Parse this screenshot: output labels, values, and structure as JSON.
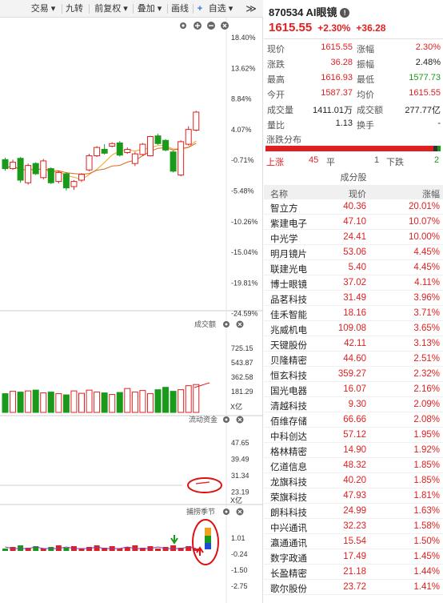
{
  "toolbar": {
    "buttons": [
      "交易 ▾",
      "九转",
      "前复权 ▾",
      "叠加 ▾",
      "画线",
      "自选 ▾"
    ],
    "collapse": "≫"
  },
  "kline": {
    "y_labels": [
      "18.40%",
      "13.62%",
      "8.84%",
      "4.07%",
      "-0.71%",
      "-5.48%",
      "-10.26%",
      "-15.04%",
      "-19.81%",
      "-24.59%"
    ],
    "candles": [
      {
        "o": -0.6,
        "c": -2.0,
        "h": -0.3,
        "l": -2.3
      },
      {
        "o": -2.0,
        "c": -1.0,
        "h": -0.6,
        "l": -2.2
      },
      {
        "o": -0.4,
        "c": -3.8,
        "h": -0.2,
        "l": -4.2
      },
      {
        "o": -4.2,
        "c": -1.5,
        "h": -1.2,
        "l": -4.5
      },
      {
        "o": -1.2,
        "c": -2.8,
        "h": -1.0,
        "l": -3.0
      },
      {
        "o": -3.4,
        "c": -0.8,
        "h": -0.5,
        "l": -3.7
      },
      {
        "o": -2.0,
        "c": -4.2,
        "h": -1.8,
        "l": -4.4
      },
      {
        "o": -4.0,
        "c": -2.6,
        "h": -2.3,
        "l": -4.3
      },
      {
        "o": -2.8,
        "c": -5.0,
        "h": -2.6,
        "l": -5.4
      },
      {
        "o": -4.8,
        "c": -4.0,
        "h": -3.8,
        "l": -5.3
      },
      {
        "o": -3.8,
        "c": -2.9,
        "h": -2.7,
        "l": -4.1
      },
      {
        "o": -2.2,
        "c": 0.0,
        "h": 0.3,
        "l": -2.4
      },
      {
        "o": 0.0,
        "c": 1.3,
        "h": 1.5,
        "l": -0.2
      },
      {
        "o": 1.0,
        "c": 0.4,
        "h": 1.8,
        "l": 0.2
      },
      {
        "o": 1.5,
        "c": 1.9,
        "h": 2.1,
        "l": 1.3
      },
      {
        "o": 2.0,
        "c": 0.1,
        "h": 2.3,
        "l": -0.1
      },
      {
        "o": 0.5,
        "c": 1.0,
        "h": 1.3,
        "l": 0.3
      },
      {
        "o": -1.2,
        "c": 0.3,
        "h": 0.6,
        "l": -1.6
      },
      {
        "o": 0.2,
        "c": 1.8,
        "h": 2.0,
        "l": 0.0
      },
      {
        "o": 0.0,
        "c": 3.0,
        "h": 3.1,
        "l": -0.1
      },
      {
        "o": 3.1,
        "c": 1.9,
        "h": 3.4,
        "l": 1.7
      },
      {
        "o": 2.4,
        "c": 0.9,
        "h": 2.6,
        "l": 0.7
      },
      {
        "o": 0.6,
        "c": -2.4,
        "h": 0.8,
        "l": -2.6
      },
      {
        "o": -3.0,
        "c": 2.2,
        "h": 2.4,
        "l": -3.2
      },
      {
        "o": 1.8,
        "c": 4.1,
        "h": 4.6,
        "l": 1.6
      },
      {
        "o": 4.0,
        "c": 6.8,
        "h": 7.0,
        "l": 3.8
      }
    ]
  },
  "volume": {
    "title": "成交额",
    "y_labels": [
      "725.15",
      "543.87",
      "362.58",
      "181.29"
    ],
    "unit": "X亿",
    "values": [
      155,
      185,
      175,
      190,
      200,
      165,
      175,
      155,
      140,
      190,
      160,
      200,
      175,
      165,
      145,
      170,
      220,
      175,
      195,
      155,
      205,
      235,
      185,
      205,
      255,
      270
    ]
  },
  "fund": {
    "title": "流动资金",
    "y_labels": [
      "47.65",
      "39.49",
      "31.34",
      "23.19"
    ],
    "unit": "X亿"
  },
  "season": {
    "title": "捕捞季节",
    "y_labels": [
      "1.01",
      "-0.24",
      "-1.50",
      "-2.75"
    ]
  },
  "stock": {
    "code": "870534",
    "name": "AI眼镜",
    "price": "1615.55",
    "change_pct": "+2.30%",
    "change_val": "+36.28"
  },
  "quote": [
    {
      "l1": "现价",
      "v1": "1615.55",
      "c1": "red",
      "l2": "涨幅",
      "v2": "2.30%",
      "c2": "red"
    },
    {
      "l1": "涨跌",
      "v1": "36.28",
      "c1": "red",
      "l2": "振幅",
      "v2": "2.48%",
      "c2": "dark"
    },
    {
      "l1": "最高",
      "v1": "1616.93",
      "c1": "red",
      "l2": "最低",
      "v2": "1577.73",
      "c2": "green"
    },
    {
      "l1": "今开",
      "v1": "1587.37",
      "c1": "red",
      "l2": "均价",
      "v2": "1615.55",
      "c2": "red"
    },
    {
      "l1": "成交量",
      "v1": "1411.01万",
      "c1": "dark",
      "l2": "成交额",
      "v2": "277.77亿",
      "c2": "dark"
    },
    {
      "l1": "量比",
      "v1": "1.13",
      "c1": "dark",
      "l2": "换手",
      "v2": "-",
      "c2": "dark"
    }
  ],
  "distribution": {
    "title": "涨跌分布",
    "up_label": "上涨",
    "up": "45",
    "flat_label": "平",
    "flat": "1",
    "down_label": "下跌",
    "down": "2"
  },
  "components": {
    "title": "成分股",
    "headers": [
      "名称",
      "现价",
      "涨幅"
    ],
    "rows": [
      [
        "智立方",
        "40.36",
        "20.01%"
      ],
      [
        "紫建电子",
        "47.10",
        "10.07%"
      ],
      [
        "中光学",
        "24.41",
        "10.00%"
      ],
      [
        "明月镜片",
        "53.06",
        "4.45%"
      ],
      [
        "联建光电",
        "5.40",
        "4.45%"
      ],
      [
        "博士眼镜",
        "37.02",
        "4.11%"
      ],
      [
        "品茗科技",
        "31.49",
        "3.96%"
      ],
      [
        "佳禾智能",
        "18.16",
        "3.71%"
      ],
      [
        "兆威机电",
        "109.08",
        "3.65%"
      ],
      [
        "天键股份",
        "42.11",
        "3.13%"
      ],
      [
        "贝隆精密",
        "44.60",
        "2.51%"
      ],
      [
        "恒玄科技",
        "359.27",
        "2.32%"
      ],
      [
        "国光电器",
        "16.07",
        "2.16%"
      ],
      [
        "清越科技",
        "9.30",
        "2.09%"
      ],
      [
        "佰维存储",
        "66.66",
        "2.08%"
      ],
      [
        "中科创达",
        "57.12",
        "1.95%"
      ],
      [
        "格林精密",
        "14.90",
        "1.92%"
      ],
      [
        "亿道信息",
        "48.32",
        "1.85%"
      ],
      [
        "龙旗科技",
        "40.20",
        "1.85%"
      ],
      [
        "荣旗科技",
        "47.93",
        "1.81%"
      ],
      [
        "朗科科技",
        "24.99",
        "1.63%"
      ],
      [
        "中兴通讯",
        "32.23",
        "1.58%"
      ],
      [
        "瀛通通讯",
        "15.54",
        "1.50%"
      ],
      [
        "数字政通",
        "17.49",
        "1.45%"
      ],
      [
        "长盈精密",
        "21.18",
        "1.44%"
      ],
      [
        "歌尔股份",
        "23.72",
        "1.41%"
      ]
    ]
  },
  "colors": {
    "up": "#e02020",
    "down": "#1a9a1a",
    "ma1": "#f0a020",
    "ma2": "#d96a1f",
    "annot": "#e01010"
  }
}
